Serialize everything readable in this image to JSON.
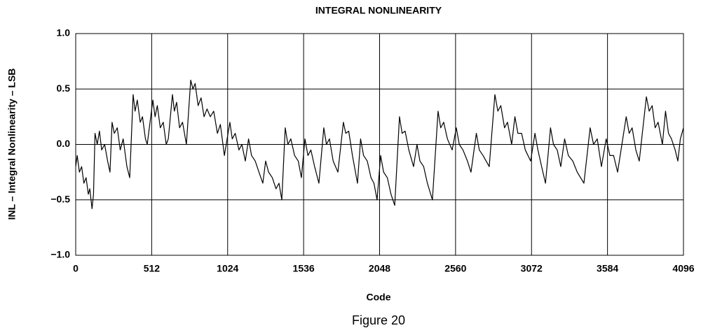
{
  "chart_data": {
    "type": "line",
    "title": "INTEGRAL NONLINEARITY",
    "x_label": "Code",
    "y_label": "INL – Integral Nonlinearity – LSB",
    "caption": "Figure 20",
    "color": "#000000",
    "grid": true,
    "xlim": [
      0,
      4096
    ],
    "xticks": [
      0,
      512,
      1024,
      1536,
      2048,
      2560,
      3072,
      3584,
      4096
    ],
    "ylim": [
      -1,
      1
    ],
    "yticks": [
      {
        "value": -1,
        "label": "−1.0"
      },
      {
        "value": -0.5,
        "label": "−0.5"
      },
      {
        "value": 0,
        "label": "0.0"
      },
      {
        "value": 0.5,
        "label": "0.5"
      },
      {
        "value": 1,
        "label": "1.0"
      }
    ],
    "x": [
      0,
      10,
      25,
      40,
      55,
      70,
      85,
      95,
      110,
      120,
      130,
      145,
      160,
      175,
      195,
      215,
      231,
      245,
      260,
      280,
      300,
      320,
      345,
      364,
      387,
      400,
      415,
      435,
      450,
      470,
      482,
      520,
      535,
      550,
      570,
      590,
      610,
      624,
      652,
      665,
      680,
      700,
      720,
      746,
      775,
      790,
      805,
      825,
      845,
      865,
      885,
      907,
      930,
      955,
      975,
      1002,
      1039,
      1055,
      1075,
      1100,
      1120,
      1143,
      1165,
      1185,
      1210,
      1235,
      1261,
      1280,
      1300,
      1325,
      1350,
      1370,
      1389,
      1412,
      1430,
      1450,
      1475,
      1500,
      1521,
      1545,
      1565,
      1585,
      1610,
      1639,
      1672,
      1690,
      1710,
      1735,
      1767,
      1804,
      1820,
      1840,
      1865,
      1899,
      1920,
      1940,
      1965,
      1990,
      2010,
      2031,
      2055,
      2075,
      2100,
      2125,
      2150,
      2182,
      2200,
      2220,
      2245,
      2277,
      2300,
      2320,
      2345,
      2370,
      2404,
      2442,
      2460,
      2480,
      2505,
      2537,
      2565,
      2585,
      2610,
      2640,
      2664,
      2700,
      2720,
      2745,
      2787,
      2825,
      2845,
      2865,
      2890,
      2910,
      2938,
      2960,
      2980,
      3005,
      3030,
      3066,
      3095,
      3115,
      3140,
      3166,
      3200,
      3220,
      3245,
      3269,
      3295,
      3320,
      3350,
      3380,
      3425,
      3467,
      3490,
      3515,
      3543,
      3575,
      3600,
      3625,
      3652,
      3710,
      3730,
      3750,
      3775,
      3798,
      3846,
      3865,
      3885,
      3905,
      3925,
      3954,
      3975,
      3995,
      4015,
      4040,
      4058,
      4075,
      4096
    ],
    "values": [
      -0.2,
      -0.1,
      -0.25,
      -0.2,
      -0.35,
      -0.3,
      -0.45,
      -0.4,
      -0.58,
      -0.45,
      0.1,
      0.0,
      0.12,
      -0.05,
      0.0,
      -0.15,
      -0.25,
      0.2,
      0.1,
      0.15,
      -0.05,
      0.05,
      -0.2,
      -0.3,
      0.45,
      0.3,
      0.4,
      0.2,
      0.25,
      0.05,
      0.0,
      0.4,
      0.25,
      0.35,
      0.15,
      0.2,
      0.0,
      0.05,
      0.45,
      0.3,
      0.38,
      0.15,
      0.2,
      0.0,
      0.58,
      0.5,
      0.55,
      0.35,
      0.42,
      0.25,
      0.32,
      0.25,
      0.3,
      0.1,
      0.18,
      -0.1,
      0.2,
      0.05,
      0.1,
      -0.05,
      0.0,
      -0.15,
      0.05,
      -0.1,
      -0.15,
      -0.25,
      -0.35,
      -0.15,
      -0.25,
      -0.3,
      -0.4,
      -0.35,
      -0.5,
      0.15,
      0.0,
      0.05,
      -0.1,
      -0.15,
      -0.3,
      0.05,
      -0.1,
      -0.05,
      -0.2,
      -0.35,
      0.15,
      0.0,
      0.05,
      -0.15,
      -0.25,
      0.2,
      0.1,
      0.12,
      -0.1,
      -0.35,
      0.05,
      -0.1,
      -0.15,
      -0.3,
      -0.35,
      -0.5,
      -0.1,
      -0.25,
      -0.3,
      -0.45,
      -0.55,
      0.25,
      0.1,
      0.12,
      -0.05,
      -0.2,
      0.0,
      -0.15,
      -0.2,
      -0.35,
      -0.5,
      0.3,
      0.15,
      0.2,
      0.05,
      -0.05,
      0.15,
      0.0,
      -0.05,
      -0.15,
      -0.25,
      0.1,
      -0.05,
      -0.1,
      -0.2,
      0.45,
      0.3,
      0.35,
      0.15,
      0.2,
      0.0,
      0.25,
      0.1,
      0.1,
      -0.05,
      -0.15,
      0.1,
      -0.05,
      -0.2,
      -0.35,
      0.15,
      0.0,
      -0.05,
      -0.2,
      0.05,
      -0.1,
      -0.15,
      -0.25,
      -0.35,
      0.15,
      0.0,
      0.05,
      -0.2,
      0.05,
      -0.1,
      -0.1,
      -0.25,
      0.25,
      0.1,
      0.15,
      -0.05,
      -0.15,
      0.43,
      0.3,
      0.35,
      0.15,
      0.2,
      0.0,
      0.3,
      0.1,
      0.05,
      -0.05,
      -0.15,
      0.05,
      0.15
    ]
  }
}
